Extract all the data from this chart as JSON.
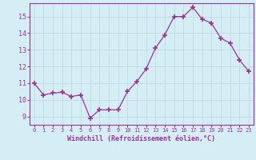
{
  "x": [
    0,
    1,
    2,
    3,
    4,
    5,
    6,
    7,
    8,
    9,
    10,
    11,
    12,
    13,
    14,
    15,
    16,
    17,
    18,
    19,
    20,
    21,
    22,
    23
  ],
  "y": [
    11.0,
    10.3,
    10.4,
    10.45,
    10.2,
    10.3,
    8.9,
    9.4,
    9.4,
    9.4,
    10.5,
    11.1,
    11.85,
    13.1,
    13.9,
    15.0,
    15.0,
    15.55,
    14.85,
    14.6,
    13.7,
    13.4,
    12.4,
    11.7
  ],
  "line_color": "#993399",
  "marker": "+",
  "marker_size": 4,
  "xlabel": "Windchill (Refroidissement éolien,°C)",
  "ylabel": "",
  "xlim": [
    -0.5,
    23.5
  ],
  "ylim": [
    8.5,
    15.8
  ],
  "yticks": [
    9,
    10,
    11,
    12,
    13,
    14,
    15
  ],
  "xticks": [
    0,
    1,
    2,
    3,
    4,
    5,
    6,
    7,
    8,
    9,
    10,
    11,
    12,
    13,
    14,
    15,
    16,
    17,
    18,
    19,
    20,
    21,
    22,
    23
  ],
  "bg_color": "#d5eef5",
  "grid_color": "#c0dde8",
  "tick_color": "#993399",
  "label_color": "#993399",
  "font_family": "monospace",
  "spine_color": "#993399"
}
